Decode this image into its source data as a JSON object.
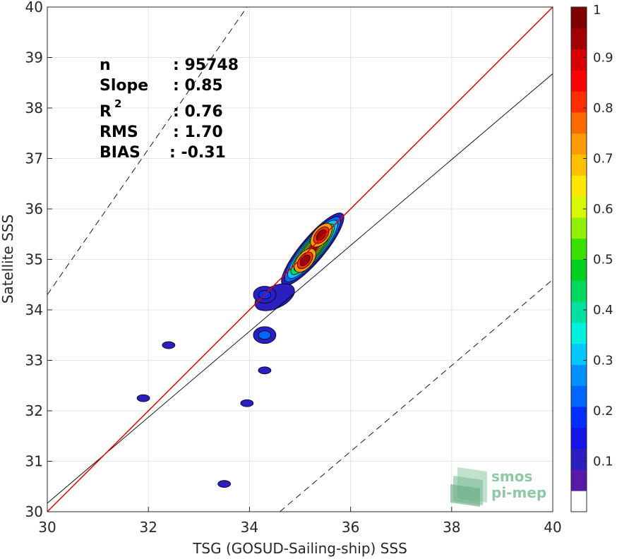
{
  "chart_data": {
    "type": "heatmap",
    "title": "",
    "xlabel": "TSG (GOSUD-Sailing-ship) SSS",
    "ylabel": "Satellite SSS",
    "xlim": [
      30,
      40
    ],
    "ylim": [
      30,
      40
    ],
    "xticks": [
      "30",
      "32",
      "34",
      "36",
      "38",
      "40"
    ],
    "yticks": [
      "30",
      "31",
      "32",
      "33",
      "34",
      "35",
      "36",
      "37",
      "38",
      "39",
      "40"
    ],
    "grid": true,
    "stats": [
      {
        "label": "n",
        "value": ": 95748"
      },
      {
        "label": "Slope",
        "value": ": 0.85"
      },
      {
        "label": "R",
        "sup": "2",
        "value": ": 0.76"
      },
      {
        "label": "RMS",
        "value": ": 1.70"
      },
      {
        "label": "BIAS",
        "value": ": -0.31"
      }
    ],
    "lines": {
      "identity": {
        "slope": 1,
        "intercept": 0,
        "color": "#e00000"
      },
      "regression": {
        "x": [
          30,
          40
        ],
        "y": [
          30.17,
          38.68
        ],
        "color": "#000000"
      },
      "upper_bound": {
        "x": [
          30,
          33.95
        ],
        "y": [
          34.3,
          40
        ],
        "style": "dashed"
      },
      "lower_bound": {
        "x": [
          34.6,
          40
        ],
        "y": [
          30,
          34.6
        ],
        "style": "dashed"
      }
    },
    "density_clusters": [
      {
        "name": "main",
        "x": 35.25,
        "y": 35.2,
        "levels": [
          0.1,
          0.2,
          0.3,
          0.4,
          0.5,
          0.6,
          0.7,
          0.8,
          0.9
        ]
      },
      {
        "name": "peak-1",
        "x": 35.1,
        "y": 34.98,
        "value": 0.9
      },
      {
        "name": "peak-2",
        "x": 35.42,
        "y": 35.48,
        "value": 0.9
      },
      {
        "name": "c-34.3",
        "x": 34.3,
        "y": 34.3,
        "value": 0.15
      },
      {
        "name": "c-34.3b",
        "x": 34.3,
        "y": 33.5,
        "value": 0.2
      },
      {
        "name": "c-34.3c",
        "x": 34.3,
        "y": 32.8,
        "value": 0.1
      },
      {
        "name": "c-32.4",
        "x": 32.4,
        "y": 33.3,
        "value": 0.1
      },
      {
        "name": "c-31.9",
        "x": 31.9,
        "y": 32.25,
        "value": 0.1
      },
      {
        "name": "c-33.9",
        "x": 33.95,
        "y": 32.15,
        "value": 0.1
      },
      {
        "name": "c-33.5",
        "x": 33.5,
        "y": 30.55,
        "value": 0.1
      }
    ],
    "colorbar": {
      "ticks": [
        "0.1",
        "0.2",
        "0.3",
        "0.4",
        "0.5",
        "0.6",
        "0.7",
        "0.8",
        "0.9",
        "1"
      ],
      "colors": [
        "#ffffff",
        "#5a1aa8",
        "#2b1fc0",
        "#1414e8",
        "#0030ff",
        "#0066ff",
        "#0090ff",
        "#00c8ff",
        "#00f0e0",
        "#00e0a0",
        "#00d860",
        "#00d020",
        "#38e000",
        "#90f000",
        "#d8f800",
        "#ffe800",
        "#ffc000",
        "#ff9a00",
        "#ff6a00",
        "#ff3000",
        "#ff0000",
        "#d80000",
        "#a00000",
        "#800000"
      ]
    }
  },
  "logo": {
    "line1": "smos",
    "line2": "pi-mep"
  }
}
